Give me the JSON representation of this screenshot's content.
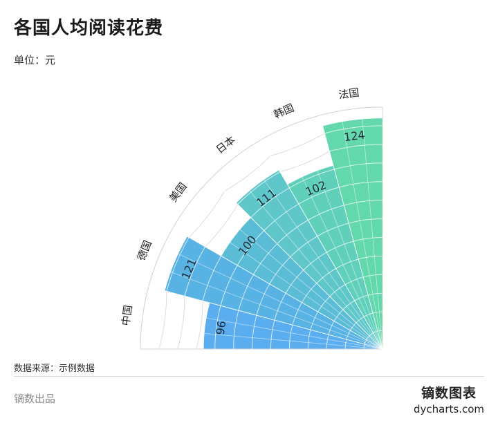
{
  "header": {
    "title": "各国人均阅读花费",
    "subtitle": "单位：元"
  },
  "footer": {
    "source": "数据来源：示例数据",
    "credit": "镝数出品",
    "brand_name": "镝数图表",
    "brand_site": "dycharts.com"
  },
  "chart_data": {
    "type": "bar",
    "layout": "radial quarter-circle (nightingale-style)",
    "categories": [
      "中国",
      "德国",
      "美国",
      "日本",
      "韩国",
      "法国"
    ],
    "values": [
      96,
      121,
      100,
      111,
      102,
      124
    ],
    "title": "各国人均阅读花费",
    "unit": "元",
    "xlabel": "",
    "ylabel": "",
    "ylim": [
      0,
      130
    ],
    "grid": true,
    "colors": [
      "#5aaef0",
      "#58b2e3",
      "#5bbcd6",
      "#5fc7c9",
      "#61d0bb",
      "#63d8ac"
    ]
  }
}
